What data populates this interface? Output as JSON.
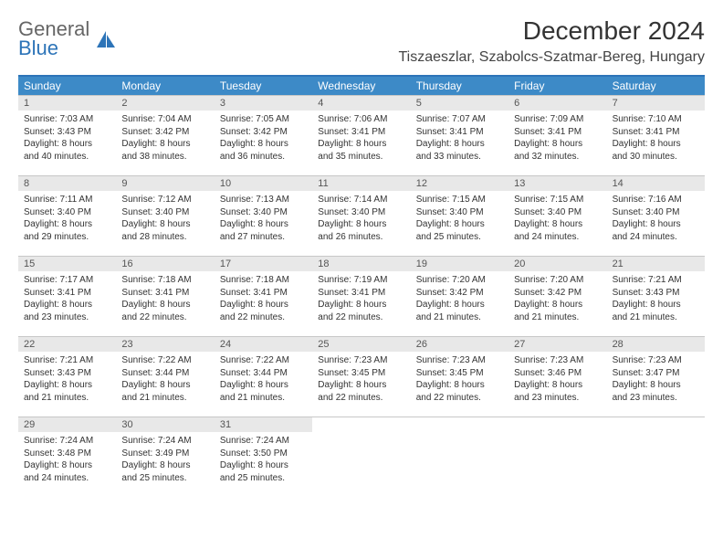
{
  "brand": {
    "top": "General",
    "bottom": "Blue"
  },
  "title": "December 2024",
  "location": "Tiszaeszlar, Szabolcs-Szatmar-Bereg, Hungary",
  "colors": {
    "header_bar": "#3d8ac7",
    "border_top": "#2d74b8",
    "daynum_bg": "#e8e8e8",
    "cell_border": "#c7c7c7",
    "text": "#333333",
    "brand_blue": "#2d74b8"
  },
  "weekdays": [
    "Sunday",
    "Monday",
    "Tuesday",
    "Wednesday",
    "Thursday",
    "Friday",
    "Saturday"
  ],
  "days": [
    {
      "n": "1",
      "sr": "Sunrise: 7:03 AM",
      "ss": "Sunset: 3:43 PM",
      "d1": "Daylight: 8 hours",
      "d2": "and 40 minutes."
    },
    {
      "n": "2",
      "sr": "Sunrise: 7:04 AM",
      "ss": "Sunset: 3:42 PM",
      "d1": "Daylight: 8 hours",
      "d2": "and 38 minutes."
    },
    {
      "n": "3",
      "sr": "Sunrise: 7:05 AM",
      "ss": "Sunset: 3:42 PM",
      "d1": "Daylight: 8 hours",
      "d2": "and 36 minutes."
    },
    {
      "n": "4",
      "sr": "Sunrise: 7:06 AM",
      "ss": "Sunset: 3:41 PM",
      "d1": "Daylight: 8 hours",
      "d2": "and 35 minutes."
    },
    {
      "n": "5",
      "sr": "Sunrise: 7:07 AM",
      "ss": "Sunset: 3:41 PM",
      "d1": "Daylight: 8 hours",
      "d2": "and 33 minutes."
    },
    {
      "n": "6",
      "sr": "Sunrise: 7:09 AM",
      "ss": "Sunset: 3:41 PM",
      "d1": "Daylight: 8 hours",
      "d2": "and 32 minutes."
    },
    {
      "n": "7",
      "sr": "Sunrise: 7:10 AM",
      "ss": "Sunset: 3:41 PM",
      "d1": "Daylight: 8 hours",
      "d2": "and 30 minutes."
    },
    {
      "n": "8",
      "sr": "Sunrise: 7:11 AM",
      "ss": "Sunset: 3:40 PM",
      "d1": "Daylight: 8 hours",
      "d2": "and 29 minutes."
    },
    {
      "n": "9",
      "sr": "Sunrise: 7:12 AM",
      "ss": "Sunset: 3:40 PM",
      "d1": "Daylight: 8 hours",
      "d2": "and 28 minutes."
    },
    {
      "n": "10",
      "sr": "Sunrise: 7:13 AM",
      "ss": "Sunset: 3:40 PM",
      "d1": "Daylight: 8 hours",
      "d2": "and 27 minutes."
    },
    {
      "n": "11",
      "sr": "Sunrise: 7:14 AM",
      "ss": "Sunset: 3:40 PM",
      "d1": "Daylight: 8 hours",
      "d2": "and 26 minutes."
    },
    {
      "n": "12",
      "sr": "Sunrise: 7:15 AM",
      "ss": "Sunset: 3:40 PM",
      "d1": "Daylight: 8 hours",
      "d2": "and 25 minutes."
    },
    {
      "n": "13",
      "sr": "Sunrise: 7:15 AM",
      "ss": "Sunset: 3:40 PM",
      "d1": "Daylight: 8 hours",
      "d2": "and 24 minutes."
    },
    {
      "n": "14",
      "sr": "Sunrise: 7:16 AM",
      "ss": "Sunset: 3:40 PM",
      "d1": "Daylight: 8 hours",
      "d2": "and 24 minutes."
    },
    {
      "n": "15",
      "sr": "Sunrise: 7:17 AM",
      "ss": "Sunset: 3:41 PM",
      "d1": "Daylight: 8 hours",
      "d2": "and 23 minutes."
    },
    {
      "n": "16",
      "sr": "Sunrise: 7:18 AM",
      "ss": "Sunset: 3:41 PM",
      "d1": "Daylight: 8 hours",
      "d2": "and 22 minutes."
    },
    {
      "n": "17",
      "sr": "Sunrise: 7:18 AM",
      "ss": "Sunset: 3:41 PM",
      "d1": "Daylight: 8 hours",
      "d2": "and 22 minutes."
    },
    {
      "n": "18",
      "sr": "Sunrise: 7:19 AM",
      "ss": "Sunset: 3:41 PM",
      "d1": "Daylight: 8 hours",
      "d2": "and 22 minutes."
    },
    {
      "n": "19",
      "sr": "Sunrise: 7:20 AM",
      "ss": "Sunset: 3:42 PM",
      "d1": "Daylight: 8 hours",
      "d2": "and 21 minutes."
    },
    {
      "n": "20",
      "sr": "Sunrise: 7:20 AM",
      "ss": "Sunset: 3:42 PM",
      "d1": "Daylight: 8 hours",
      "d2": "and 21 minutes."
    },
    {
      "n": "21",
      "sr": "Sunrise: 7:21 AM",
      "ss": "Sunset: 3:43 PM",
      "d1": "Daylight: 8 hours",
      "d2": "and 21 minutes."
    },
    {
      "n": "22",
      "sr": "Sunrise: 7:21 AM",
      "ss": "Sunset: 3:43 PM",
      "d1": "Daylight: 8 hours",
      "d2": "and 21 minutes."
    },
    {
      "n": "23",
      "sr": "Sunrise: 7:22 AM",
      "ss": "Sunset: 3:44 PM",
      "d1": "Daylight: 8 hours",
      "d2": "and 21 minutes."
    },
    {
      "n": "24",
      "sr": "Sunrise: 7:22 AM",
      "ss": "Sunset: 3:44 PM",
      "d1": "Daylight: 8 hours",
      "d2": "and 21 minutes."
    },
    {
      "n": "25",
      "sr": "Sunrise: 7:23 AM",
      "ss": "Sunset: 3:45 PM",
      "d1": "Daylight: 8 hours",
      "d2": "and 22 minutes."
    },
    {
      "n": "26",
      "sr": "Sunrise: 7:23 AM",
      "ss": "Sunset: 3:45 PM",
      "d1": "Daylight: 8 hours",
      "d2": "and 22 minutes."
    },
    {
      "n": "27",
      "sr": "Sunrise: 7:23 AM",
      "ss": "Sunset: 3:46 PM",
      "d1": "Daylight: 8 hours",
      "d2": "and 23 minutes."
    },
    {
      "n": "28",
      "sr": "Sunrise: 7:23 AM",
      "ss": "Sunset: 3:47 PM",
      "d1": "Daylight: 8 hours",
      "d2": "and 23 minutes."
    },
    {
      "n": "29",
      "sr": "Sunrise: 7:24 AM",
      "ss": "Sunset: 3:48 PM",
      "d1": "Daylight: 8 hours",
      "d2": "and 24 minutes."
    },
    {
      "n": "30",
      "sr": "Sunrise: 7:24 AM",
      "ss": "Sunset: 3:49 PM",
      "d1": "Daylight: 8 hours",
      "d2": "and 25 minutes."
    },
    {
      "n": "31",
      "sr": "Sunrise: 7:24 AM",
      "ss": "Sunset: 3:50 PM",
      "d1": "Daylight: 8 hours",
      "d2": "and 25 minutes."
    }
  ]
}
